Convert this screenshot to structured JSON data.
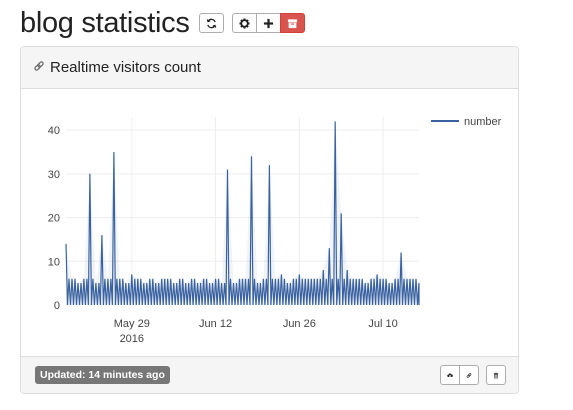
{
  "header": {
    "title": "blog statistics",
    "buttons": {
      "refresh_icon": "refresh-icon",
      "settings_icon": "gear-icon",
      "add_icon": "plus-icon",
      "archive_icon": "archive-box-icon"
    },
    "danger_color": "#d9534f"
  },
  "panel": {
    "title": "Realtime visitors count",
    "title_icon": "link-icon",
    "footer": {
      "updated": "Updated: 14 minutes ago",
      "badge_color": "#777777",
      "icons": [
        "cloud-upload-icon",
        "link-icon",
        "trash-icon"
      ]
    }
  },
  "chart_data": {
    "type": "line",
    "legend_placement": "top-right",
    "grid": true,
    "line_color": "#3a62a0",
    "ylim": [
      0,
      43
    ],
    "yticks": [
      "0",
      "10",
      "20",
      "30",
      "40"
    ],
    "xticks": [
      {
        "label": "May 29",
        "sub": "2016",
        "date": "2016-05-29"
      },
      {
        "label": "Jun 12",
        "sub": "",
        "date": "2016-06-12"
      },
      {
        "label": "Jun 26",
        "sub": "",
        "date": "2016-06-26"
      },
      {
        "label": "Jul 10",
        "sub": "",
        "date": "2016-07-10"
      }
    ],
    "x_range": [
      "2016-05-18",
      "2016-07-16"
    ],
    "series": [
      {
        "name": "number",
        "x": [
          "2016-05-18",
          "2016-05-19",
          "2016-05-20",
          "2016-05-21",
          "2016-05-22",
          "2016-05-23",
          "2016-05-24",
          "2016-05-25",
          "2016-05-26",
          "2016-05-27",
          "2016-05-28",
          "2016-05-29",
          "2016-05-30",
          "2016-05-31",
          "2016-06-01",
          "2016-06-02",
          "2016-06-03",
          "2016-06-04",
          "2016-06-05",
          "2016-06-06",
          "2016-06-07",
          "2016-06-08",
          "2016-06-09",
          "2016-06-10",
          "2016-06-11",
          "2016-06-12",
          "2016-06-13",
          "2016-06-14",
          "2016-06-15",
          "2016-06-16",
          "2016-06-17",
          "2016-06-18",
          "2016-06-19",
          "2016-06-20",
          "2016-06-21",
          "2016-06-22",
          "2016-06-23",
          "2016-06-24",
          "2016-06-25",
          "2016-06-26",
          "2016-06-27",
          "2016-06-28",
          "2016-06-29",
          "2016-06-30",
          "2016-07-01",
          "2016-07-02",
          "2016-07-03",
          "2016-07-04",
          "2016-07-05",
          "2016-07-06",
          "2016-07-07",
          "2016-07-08",
          "2016-07-09",
          "2016-07-10",
          "2016-07-11",
          "2016-07-12",
          "2016-07-13",
          "2016-07-14",
          "2016-07-15",
          "2016-07-16"
        ],
        "y": [
          14,
          6,
          5,
          6,
          30,
          5,
          16,
          6,
          35,
          6,
          5,
          7,
          6,
          5,
          6,
          5,
          6,
          6,
          5,
          6,
          5,
          6,
          5,
          6,
          5,
          6,
          5,
          31,
          5,
          6,
          6,
          34,
          5,
          6,
          32,
          6,
          7,
          5,
          6,
          7,
          6,
          6,
          6,
          8,
          13,
          42,
          21,
          8,
          6,
          6,
          5,
          6,
          7,
          6,
          5,
          6,
          12,
          6,
          6,
          5
        ]
      }
    ]
  }
}
